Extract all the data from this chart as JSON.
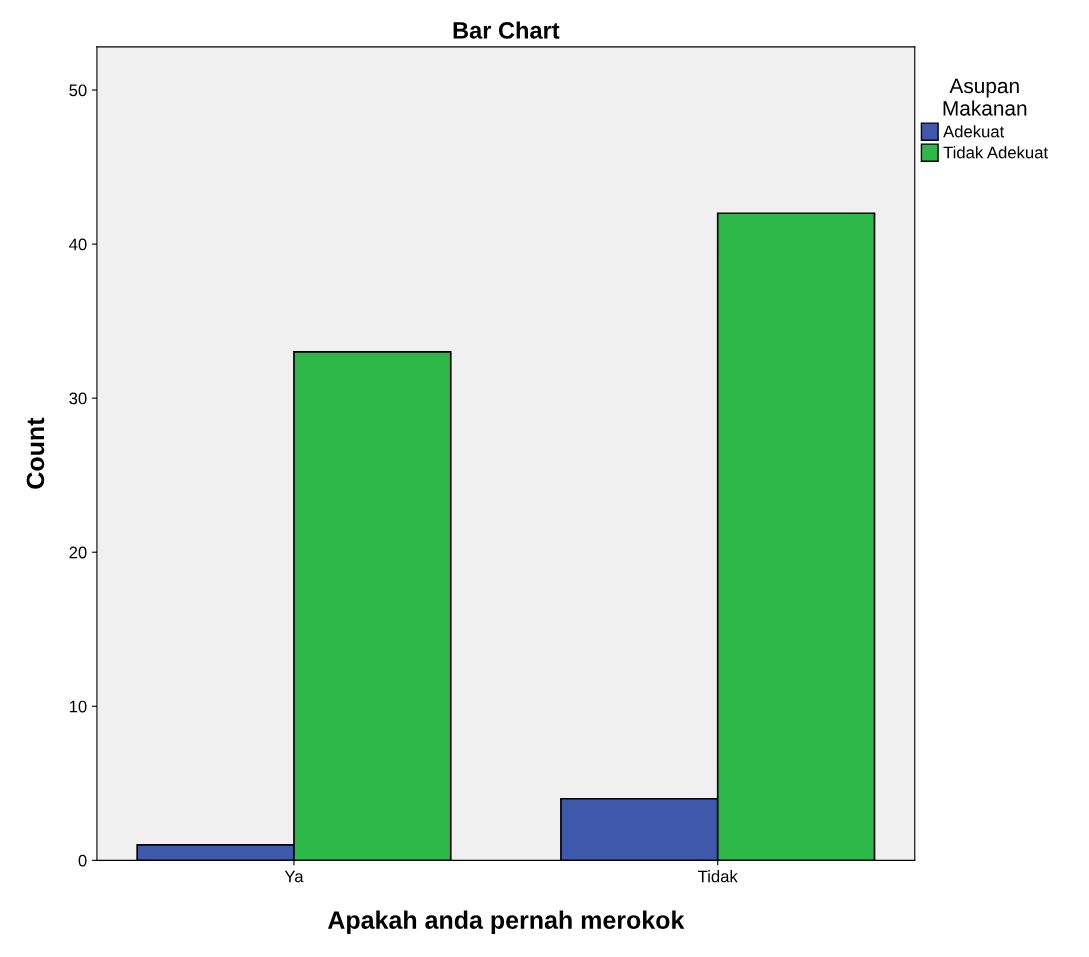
{
  "chart_data": {
    "type": "bar",
    "title": "Bar Chart",
    "xlabel": "Apakah anda pernah merokok",
    "ylabel": "Count",
    "legend_title": "Asupan\nMakanan",
    "categories": [
      "Ya",
      "Tidak"
    ],
    "series": [
      {
        "name": "Adekuat",
        "color": "#3e58ac",
        "values": [
          1,
          4
        ]
      },
      {
        "name": "Tidak Adekuat",
        "color": "#2fb84a",
        "values": [
          33,
          42
        ]
      }
    ],
    "ylim": [
      0,
      52.8
    ],
    "yticks": [
      0,
      10,
      20,
      30,
      40,
      50
    ],
    "grid": false,
    "legend": "top right"
  }
}
